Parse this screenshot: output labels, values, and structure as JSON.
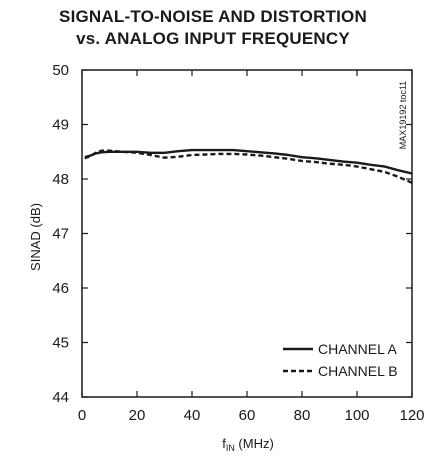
{
  "chart_data": {
    "type": "line",
    "title_line1": "SIGNAL-TO-NOISE AND DISTORTION",
    "title_line2": "vs. ANALOG INPUT FREQUENCY",
    "xlabel_main": "f",
    "xlabel_sub": "IN",
    "xlabel_unit": " (MHz)",
    "ylabel": "SINAD (dB)",
    "doc_id": "MAX19192 toc11",
    "xlim": [
      0,
      120
    ],
    "ylim": [
      44,
      50
    ],
    "xticks": [
      0,
      20,
      40,
      60,
      80,
      100,
      120
    ],
    "yticks": [
      44,
      45,
      46,
      47,
      48,
      49,
      50
    ],
    "legend_position": "bottom-right",
    "grid": false,
    "series": [
      {
        "name": "CHANNEL A",
        "style": "solid",
        "color": "#1a1a1a",
        "x": [
          1,
          3,
          5,
          7,
          10,
          15,
          20,
          25,
          30,
          35,
          40,
          45,
          50,
          55,
          60,
          65,
          70,
          75,
          80,
          85,
          90,
          95,
          100,
          105,
          110,
          115,
          120
        ],
        "y": [
          48.4,
          48.43,
          48.47,
          48.49,
          48.5,
          48.5,
          48.5,
          48.48,
          48.48,
          48.51,
          48.53,
          48.53,
          48.53,
          48.53,
          48.51,
          48.49,
          48.47,
          48.44,
          48.4,
          48.38,
          48.35,
          48.32,
          48.3,
          48.26,
          48.23,
          48.16,
          48.1
        ]
      },
      {
        "name": "CHANNEL B",
        "style": "dashed",
        "color": "#1a1a1a",
        "x": [
          1,
          3,
          5,
          7,
          10,
          15,
          20,
          25,
          30,
          35,
          40,
          45,
          50,
          55,
          60,
          65,
          70,
          75,
          80,
          85,
          90,
          95,
          100,
          105,
          110,
          115,
          120
        ],
        "y": [
          48.38,
          48.42,
          48.48,
          48.52,
          48.52,
          48.5,
          48.48,
          48.44,
          48.39,
          48.41,
          48.44,
          48.45,
          48.46,
          48.46,
          48.45,
          48.43,
          48.4,
          48.37,
          48.33,
          48.31,
          48.28,
          48.26,
          48.23,
          48.18,
          48.13,
          48.04,
          47.93
        ]
      }
    ]
  }
}
